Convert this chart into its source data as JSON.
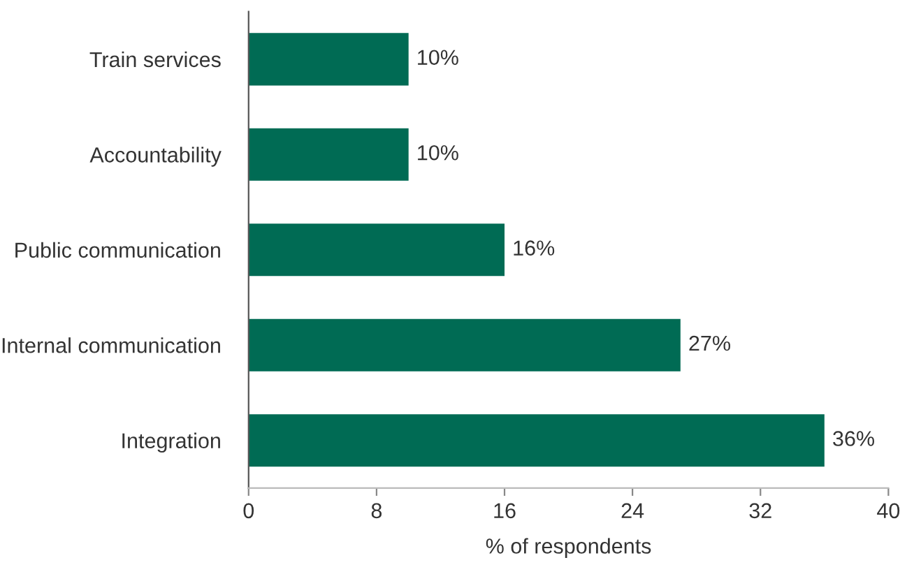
{
  "chart_data": {
    "type": "bar",
    "orientation": "horizontal",
    "xlabel": "% of respondents",
    "categories": [
      "Train services",
      "Accountability",
      "Public communication",
      "Internal communication",
      "Integration"
    ],
    "values": [
      10,
      10,
      16,
      27,
      36
    ],
    "value_labels": [
      "10%",
      "10%",
      "16%",
      "27%",
      "36%"
    ],
    "color": "#006b54",
    "xlim": [
      0,
      40
    ],
    "xticks": [
      0,
      8,
      16,
      24,
      32,
      40
    ],
    "grid": false,
    "legend": false
  }
}
